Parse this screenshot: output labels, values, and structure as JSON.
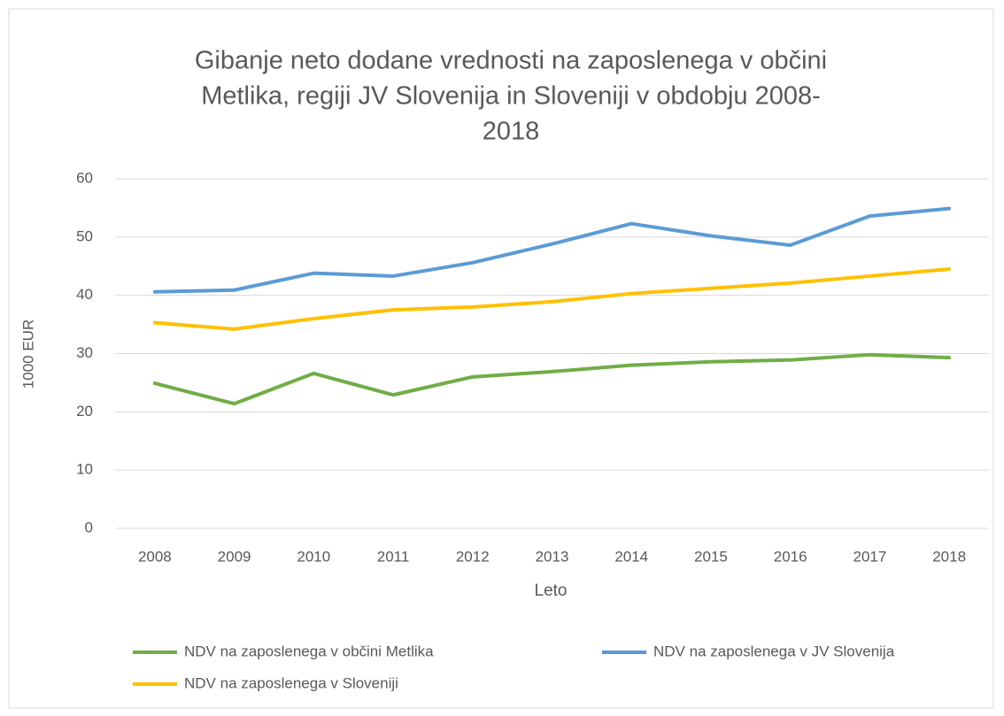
{
  "chart_data": {
    "type": "line",
    "title": [
      "Gibanje neto dodane vrednosti na zaposlenega v občini",
      "Metlika, regiji JV Slovenija in Sloveniji v obdobju 2008-",
      "2018"
    ],
    "x_label": "Leto",
    "y_label": "1000 EUR",
    "categories": [
      "2008",
      "2009",
      "2010",
      "2011",
      "2012",
      "2013",
      "2014",
      "2015",
      "2016",
      "2017",
      "2018"
    ],
    "series": [
      {
        "name": "NDV na zaposlenega v občini Metlika",
        "color": "#70ad47",
        "values": [
          24.9,
          21.4,
          26.6,
          22.9,
          26.0,
          26.9,
          28.0,
          28.6,
          28.9,
          29.8,
          29.3
        ]
      },
      {
        "name": "NDV na zaposlenega v JV Slovenija",
        "color": "#5b9bd5",
        "values": [
          40.6,
          40.9,
          43.8,
          43.3,
          45.6,
          48.8,
          52.3,
          50.2,
          48.6,
          53.6,
          54.9
        ]
      },
      {
        "name": "NDV na zaposlenega v Sloveniji",
        "color": "#ffc000",
        "values": [
          35.3,
          34.2,
          36.0,
          37.5,
          38.0,
          38.9,
          40.3,
          41.2,
          42.1,
          43.3,
          44.5
        ]
      }
    ],
    "ylim": [
      0,
      60
    ],
    "yticks": [
      0,
      10,
      20,
      30,
      40,
      50,
      60
    ],
    "grid": true,
    "legend": "bottom"
  }
}
